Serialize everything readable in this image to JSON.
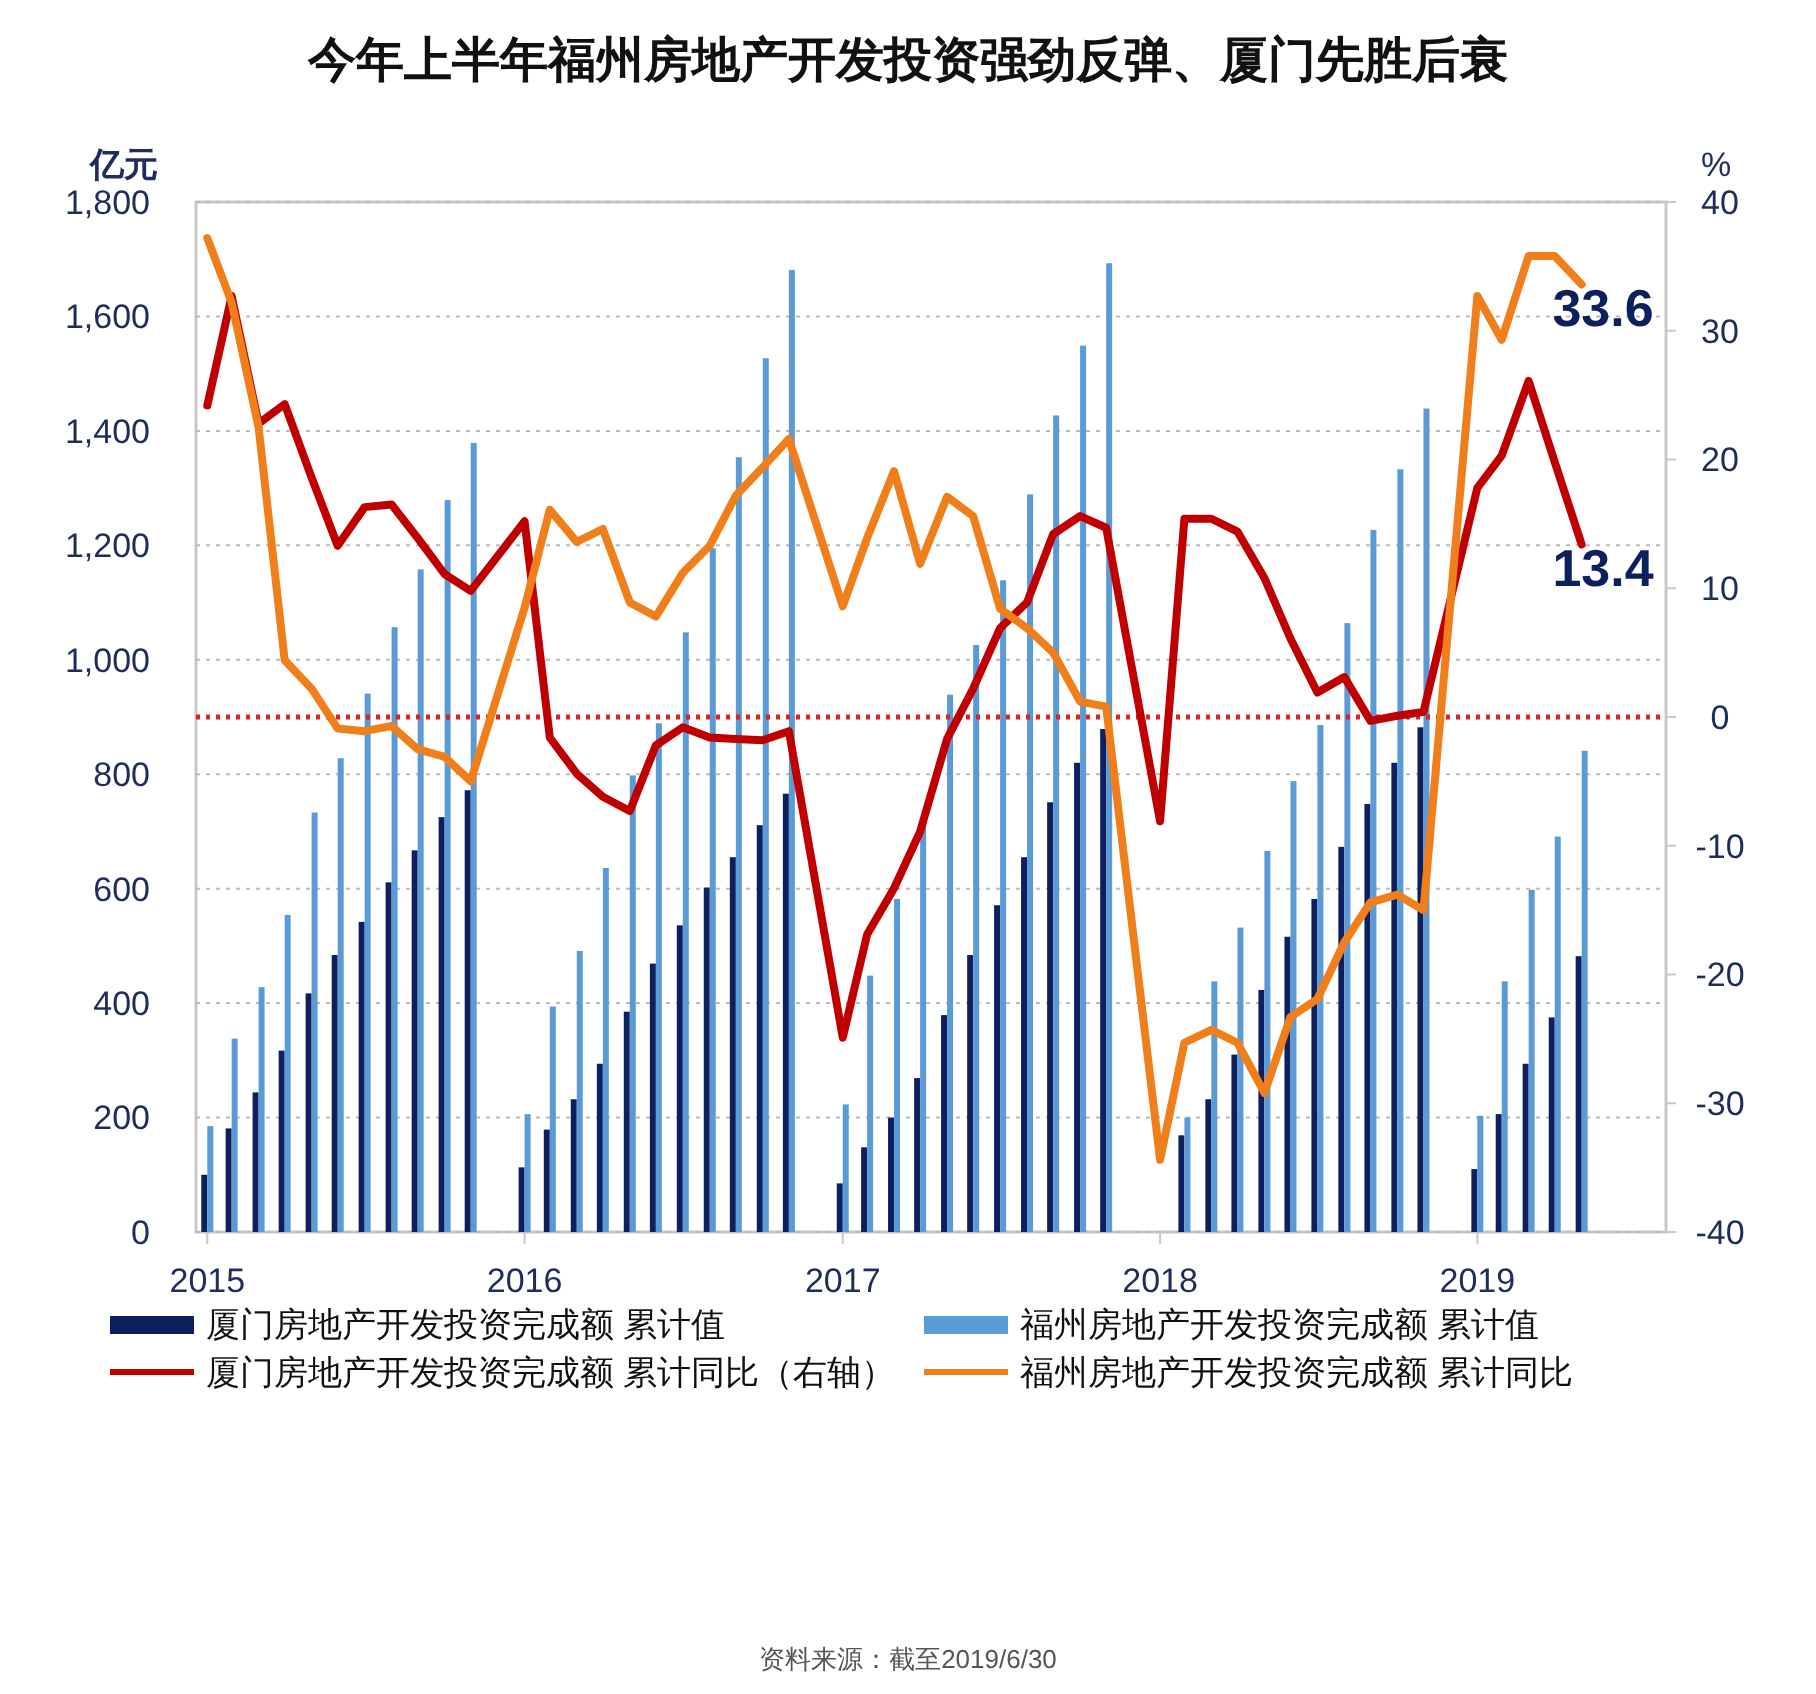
{
  "chart_data": {
    "type": "bar",
    "title": "今年上半年福州房地产开发投资强劲反弹、厦门先胜后衰",
    "ylabel": "亿元",
    "y2label": "%",
    "x": [
      "2015-02",
      "2015-03",
      "2015-04",
      "2015-05",
      "2015-06",
      "2015-07",
      "2015-08",
      "2015-09",
      "2015-10",
      "2015-11",
      "2015-12",
      "2016-02",
      "2016-03",
      "2016-04",
      "2016-05",
      "2016-06",
      "2016-07",
      "2016-08",
      "2016-09",
      "2016-10",
      "2016-11",
      "2016-12",
      "2017-02",
      "2017-03",
      "2017-04",
      "2017-05",
      "2017-06",
      "2017-07",
      "2017-08",
      "2017-09",
      "2017-10",
      "2017-11",
      "2017-12",
      "2018-02",
      "2018-03",
      "2018-04",
      "2018-05",
      "2018-06",
      "2018-07",
      "2018-08",
      "2018-09",
      "2018-10",
      "2018-11",
      "2018-12",
      "2019-02",
      "2019-03",
      "2019-04",
      "2019-05",
      "2019-06"
    ],
    "xlim": [
      "2015-01-19",
      "2019-09-06"
    ],
    "xticks": [
      {
        "value": "2015-02",
        "label": "2015"
      },
      {
        "value": "2016-02",
        "label": "2016"
      },
      {
        "value": "2017-02",
        "label": "2017"
      },
      {
        "value": "2018-02",
        "label": "2018"
      },
      {
        "value": "2019-02",
        "label": "2019"
      }
    ],
    "ylim": [
      0,
      1800
    ],
    "yticks": [
      0,
      200,
      400,
      600,
      800,
      {
        "value": 1000,
        "label": "1,000"
      },
      {
        "value": 1200,
        "label": "1,200"
      },
      {
        "value": 1400,
        "label": "1,400"
      },
      {
        "value": 1600,
        "label": "1,600"
      },
      {
        "value": 1800,
        "label": "1,800"
      }
    ],
    "y2lim": [
      -40,
      40
    ],
    "y2ticks": [
      -40,
      -30,
      -20,
      -10,
      0,
      10,
      20,
      30,
      40
    ],
    "grid": "y",
    "legend": "bottom",
    "series": [
      {
        "name": "厦门房地产开发投资完成额 累计值",
        "color": "#0d1f5c",
        "values": [
          100,
          181,
          244,
          317,
          417,
          484,
          542,
          611,
          667,
          725,
          772,
          113,
          179,
          232,
          294,
          385,
          469,
          536,
          602,
          655,
          711,
          766,
          85,
          148,
          200,
          269,
          379,
          484,
          571,
          655,
          751,
          820,
          879,
          null,
          169,
          232,
          310,
          423,
          516,
          582,
          673,
          748,
          820,
          882,
          110,
          206,
          294,
          375,
          482
        ]
      },
      {
        "name": "福州房地产开发投资完成额 累计值",
        "color": "#5b9bd5",
        "values": [
          185,
          338,
          428,
          554,
          733,
          828,
          941,
          1057,
          1158,
          1279,
          1379,
          206,
          394,
          491,
          636,
          798,
          889,
          1048,
          1195,
          1354,
          1527,
          1681,
          223,
          448,
          582,
          711,
          939,
          1026,
          1139,
          1289,
          1427,
          1549,
          1693,
          null,
          200,
          438,
          532,
          666,
          788,
          886,
          1064,
          1227,
          1333,
          1439,
          203,
          438,
          598,
          691,
          841
        ]
      },
      {
        "name": "厦门房地产开发投资完成额 累计同比（右轴）",
        "type": "line",
        "axis": "y2",
        "color": "#c00000",
        "values": [
          24.2,
          32.7,
          22.8,
          24.3,
          18.6,
          13.3,
          16.3,
          16.5,
          13.9,
          11.1,
          9.8,
          15.2,
          -1.6,
          -4.4,
          -6.2,
          -7.3,
          -2.2,
          -0.8,
          -1.6,
          -1.7,
          -1.8,
          -1.1,
          -24.9,
          -16.9,
          -13.3,
          -8.9,
          -1.7,
          2.2,
          6.9,
          8.9,
          14.2,
          15.6,
          14.7,
          -8.1,
          15.4,
          15.4,
          14.4,
          10.8,
          6.1,
          1.9,
          3.1,
          -0.3,
          0.1,
          0.4,
          17.8,
          20.3,
          26.1,
          19.8,
          13.4
        ],
        "value_labels": [
          null,
          null,
          null,
          null,
          null,
          null,
          null,
          null,
          null,
          null,
          null,
          null,
          null,
          null,
          null,
          null,
          null,
          null,
          null,
          null,
          null,
          null,
          null,
          null,
          null,
          null,
          null,
          null,
          null,
          null,
          null,
          null,
          null,
          null,
          null,
          null,
          null,
          null,
          null,
          null,
          null,
          null,
          null,
          null,
          null,
          null,
          null,
          null,
          "13.4"
        ]
      },
      {
        "name": "福州房地产开发投资完成额 累计同比",
        "type": "line",
        "axis": "y2",
        "color": "#f07f1b",
        "values": [
          37.2,
          32.2,
          22.5,
          4.4,
          2.2,
          -0.9,
          -1.1,
          -0.7,
          -2.5,
          -3.1,
          -5,
          8.5,
          16.1,
          13.6,
          14.6,
          8.9,
          7.8,
          11.2,
          13.3,
          17.2,
          19.4,
          21.6,
          8.6,
          13.9,
          19.1,
          11.9,
          17.1,
          15.6,
          8.4,
          6.9,
          5,
          1.2,
          0.8,
          -34.4,
          -25.3,
          -24.3,
          -25.3,
          -29.2,
          -23.3,
          -21.9,
          -17.5,
          -14.4,
          -13.8,
          -15,
          32.7,
          29.3,
          35.8,
          35.8,
          33.6
        ],
        "value_labels": [
          null,
          null,
          null,
          null,
          null,
          null,
          null,
          null,
          null,
          null,
          null,
          null,
          null,
          null,
          null,
          null,
          null,
          null,
          null,
          null,
          null,
          null,
          null,
          null,
          null,
          null,
          null,
          null,
          null,
          null,
          null,
          null,
          null,
          null,
          null,
          null,
          null,
          null,
          null,
          null,
          null,
          null,
          null,
          null,
          null,
          null,
          null,
          null,
          "33.6"
        ]
      }
    ],
    "ref_lines": [
      {
        "axis": "y2",
        "value": 0,
        "color": "#e02020",
        "line_style": "dotted"
      }
    ],
    "annotations": [
      "资料来源：截至2019/6/30"
    ]
  }
}
